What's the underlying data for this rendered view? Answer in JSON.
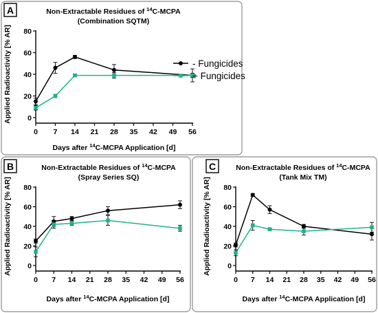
{
  "colors": {
    "minus": "#000000",
    "plus": "#1fb28d"
  },
  "chart_data": [
    {
      "panel": "A",
      "type": "line",
      "title_prefix": "Non-Extractable Residues of ",
      "title_sup": "14",
      "title_suffix": "C-MCPA",
      "subtitle": "(Combination SQTM)",
      "ylabel": "Applied Radioactivity [% AR]",
      "xlabel_prefix": "Days after ",
      "xlabel_sup": "14",
      "xlabel_suffix": "C-MCPA Application [d]",
      "xlim": [
        0,
        56
      ],
      "ylim": [
        0,
        80
      ],
      "xticks": [
        0,
        7,
        14,
        21,
        28,
        35,
        42,
        49,
        56
      ],
      "yticks": [
        0,
        20,
        40,
        60,
        80
      ],
      "legend": "right",
      "series": [
        {
          "name": "- Fungicides",
          "color_key": "minus",
          "marker": "circle",
          "x": [
            0,
            7,
            14,
            28,
            56
          ],
          "y": [
            15,
            46,
            56,
            44,
            39
          ],
          "err": [
            3,
            5,
            1.5,
            5,
            6
          ]
        },
        {
          "name": "+ Fungicides",
          "color_key": "plus",
          "marker": "square",
          "x": [
            0,
            7,
            14,
            28,
            56
          ],
          "y": [
            9,
            20,
            39,
            39,
            39
          ],
          "err": [
            2,
            1.5,
            1,
            2.5,
            2
          ]
        }
      ]
    },
    {
      "panel": "B",
      "type": "line",
      "title_prefix": "Non-Extractable Residues of ",
      "title_sup": "14",
      "title_suffix": "C-MCPA",
      "subtitle": "(Spray Series SQ)",
      "ylabel": "Applied Radioactivity [% AR]",
      "xlabel_prefix": "Days after ",
      "xlabel_sup": "14",
      "xlabel_suffix": "C-MCPA Application [d]",
      "xlim": [
        0,
        56
      ],
      "ylim": [
        0,
        80
      ],
      "xticks": [
        0,
        7,
        14,
        21,
        28,
        35,
        42,
        49,
        56
      ],
      "yticks": [
        0,
        20,
        40,
        60,
        80
      ],
      "legend": "",
      "series": [
        {
          "name": "- Fungicides",
          "color_key": "minus",
          "marker": "circle",
          "x": [
            0,
            7,
            14,
            28,
            56
          ],
          "y": [
            25,
            45,
            48,
            56,
            62
          ],
          "err": [
            2,
            5,
            2,
            4,
            4
          ]
        },
        {
          "name": "+ Fungicides",
          "color_key": "plus",
          "marker": "square",
          "x": [
            0,
            7,
            14,
            28,
            56
          ],
          "y": [
            14,
            42,
            43,
            46,
            38
          ],
          "err": [
            5,
            4,
            2,
            5,
            3
          ]
        }
      ]
    },
    {
      "panel": "C",
      "type": "line",
      "title_prefix": "Non-Extractable Residues of ",
      "title_sup": "14",
      "title_suffix": "C-MCPA",
      "subtitle": "(Tank Mix TM)",
      "ylabel": "Applied Radioactivity [% AR]",
      "xlabel_prefix": "Days after ",
      "xlabel_sup": "14",
      "xlabel_suffix": "C-MCPA Application [d]",
      "xlim": [
        0,
        56
      ],
      "ylim": [
        0,
        80
      ],
      "xticks": [
        0,
        7,
        14,
        21,
        28,
        35,
        42,
        49,
        56
      ],
      "yticks": [
        0,
        20,
        40,
        60,
        80
      ],
      "legend": "",
      "series": [
        {
          "name": "- Fungicides",
          "color_key": "minus",
          "marker": "circle",
          "x": [
            0,
            7,
            14,
            28,
            56
          ],
          "y": [
            21,
            72,
            57,
            40,
            32
          ],
          "err": [
            2,
            1.5,
            4,
            2,
            6
          ]
        },
        {
          "name": "+ Fungicides",
          "color_key": "plus",
          "marker": "square",
          "x": [
            0,
            7,
            14,
            28,
            56
          ],
          "y": [
            13,
            41,
            37,
            35,
            39
          ],
          "err": [
            3,
            5,
            1,
            4,
            5
          ]
        }
      ]
    }
  ]
}
